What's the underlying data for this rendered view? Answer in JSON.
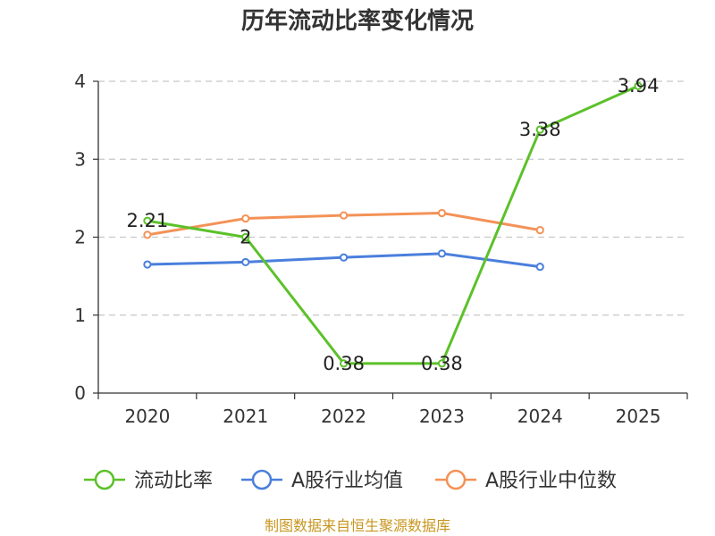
{
  "chart_data": {
    "type": "line",
    "title": "历年流动比率变化情况",
    "categories": [
      "2020",
      "2021",
      "2022",
      "2023",
      "2024",
      "2025"
    ],
    "y_ticks": [
      "0",
      "1",
      "2",
      "3",
      "4"
    ],
    "ylim": [
      0,
      4
    ],
    "grid": true,
    "legend_position": "bottom",
    "series": [
      {
        "name": "流动比率",
        "color": "#5cc12a",
        "values": [
          2.21,
          2.0,
          0.38,
          0.38,
          3.38,
          3.94
        ],
        "labels": [
          "2.21",
          "2",
          "0.38",
          "0.38",
          "3.38",
          "3.94"
        ]
      },
      {
        "name": "A股行业均值",
        "color": "#4a7fdc",
        "values": [
          1.65,
          1.68,
          1.74,
          1.79,
          1.62,
          null
        ]
      },
      {
        "name": "A股行业中位数",
        "color": "#f39257",
        "values": [
          2.03,
          2.24,
          2.28,
          2.31,
          2.09,
          null
        ]
      }
    ]
  },
  "source": "制图数据来自恒生聚源数据库"
}
